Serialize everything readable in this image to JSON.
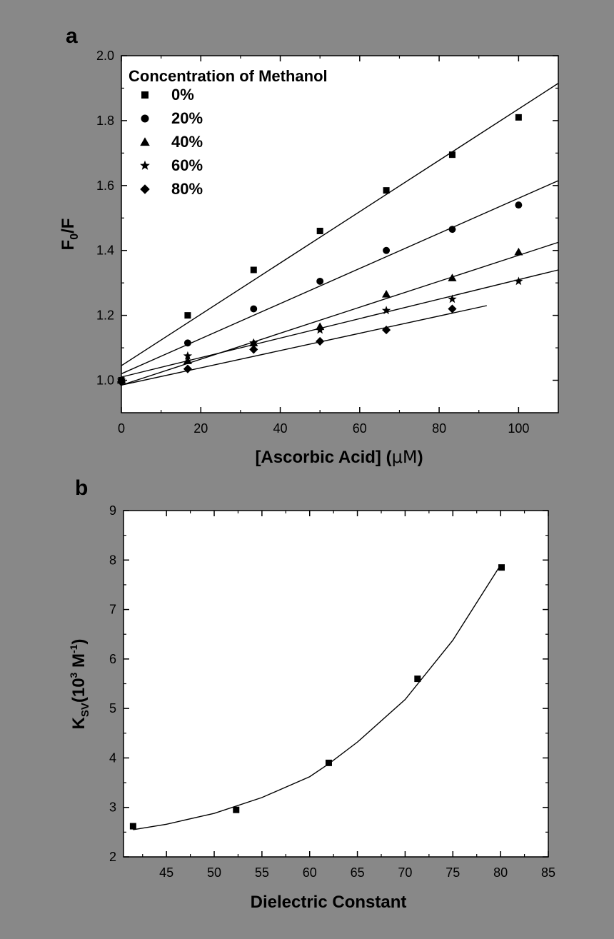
{
  "colors": {
    "background": "#888888",
    "plot_bg": "#ffffff",
    "ink": "#000000"
  },
  "chart_data": [
    {
      "panel_label": "a",
      "type": "scatter",
      "title": "",
      "xlabel_main": "[Ascorbic Acid] (",
      "xlabel_unit": "μM",
      "xlabel_close": ")",
      "ylabel_main": "F",
      "ylabel_sub": "0",
      "ylabel_tail": "/F",
      "xlim": [
        0,
        110
      ],
      "ylim": [
        0.9,
        2.0
      ],
      "x_ticks": [
        0,
        20,
        40,
        60,
        80,
        100
      ],
      "y_ticks": [
        1.0,
        1.2,
        1.4,
        1.6,
        1.8,
        2.0
      ],
      "x_tick_labels": [
        "0",
        "20",
        "40",
        "60",
        "80",
        "100"
      ],
      "y_tick_labels": [
        "1.0",
        "1.2",
        "1.4",
        "1.6",
        "1.8",
        "2.0"
      ],
      "legend_title": "Concentration of Methanol",
      "legend_position": "top-left",
      "series": [
        {
          "name": "0%",
          "marker": "square",
          "x": [
            0,
            16.7,
            33.3,
            50,
            66.7,
            83.3,
            100
          ],
          "y": [
            1.0,
            1.2,
            1.34,
            1.46,
            1.585,
            1.695,
            1.81
          ],
          "fit": {
            "x": [
              0,
              110
            ],
            "y": [
              1.045,
              1.915
            ]
          }
        },
        {
          "name": "20%",
          "marker": "circle",
          "x": [
            0,
            16.7,
            33.3,
            50,
            66.7,
            83.3,
            100
          ],
          "y": [
            1.0,
            1.115,
            1.22,
            1.305,
            1.4,
            1.465,
            1.54
          ],
          "fit": {
            "x": [
              0,
              110
            ],
            "y": [
              1.02,
              1.615
            ]
          }
        },
        {
          "name": "40%",
          "marker": "triangle",
          "x": [
            0,
            16.7,
            33.3,
            50,
            66.7,
            83.3,
            100
          ],
          "y": [
            1.0,
            1.06,
            1.115,
            1.165,
            1.265,
            1.315,
            1.395
          ],
          "fit": {
            "x": [
              0,
              110
            ],
            "y": [
              0.985,
              1.425
            ]
          }
        },
        {
          "name": "60%",
          "marker": "star",
          "x": [
            0,
            16.7,
            33.3,
            50,
            66.7,
            83.3,
            100
          ],
          "y": [
            1.0,
            1.075,
            1.115,
            1.155,
            1.215,
            1.25,
            1.305
          ],
          "fit": {
            "x": [
              0,
              110
            ],
            "y": [
              1.01,
              1.34
            ]
          }
        },
        {
          "name": "80%",
          "marker": "diamond",
          "x": [
            0,
            16.7,
            33.3,
            50,
            66.7,
            83.3
          ],
          "y": [
            0.995,
            1.035,
            1.095,
            1.12,
            1.155,
            1.22
          ],
          "fit": {
            "x": [
              0,
              92
            ],
            "y": [
              0.985,
              1.23
            ]
          }
        }
      ]
    },
    {
      "panel_label": "b",
      "type": "scatter",
      "title": "",
      "xlabel": "Dielectric Constant",
      "ylabel_main": "K",
      "ylabel_sub": "SV",
      "ylabel_mid": "(10",
      "ylabel_sup1": "3",
      "ylabel_unit": " M",
      "ylabel_sup2": "-1",
      "ylabel_close": ")",
      "xlim": [
        40.5,
        85
      ],
      "ylim": [
        2,
        9
      ],
      "x_ticks": [
        45,
        50,
        55,
        60,
        65,
        70,
        75,
        80,
        85
      ],
      "y_ticks": [
        2,
        3,
        4,
        5,
        6,
        7,
        8,
        9
      ],
      "x_tick_labels": [
        "45",
        "50",
        "55",
        "60",
        "65",
        "70",
        "75",
        "80",
        "85"
      ],
      "y_tick_labels": [
        "2",
        "3",
        "4",
        "5",
        "6",
        "7",
        "8",
        "9"
      ],
      "series": [
        {
          "name": "Ksv",
          "marker": "square",
          "x": [
            41.5,
            52.3,
            62.0,
            71.3,
            80.1
          ],
          "y": [
            2.62,
            2.95,
            3.9,
            5.6,
            7.85
          ],
          "fit": {
            "x": [
              41.5,
              45,
              50,
              55,
              60,
              62,
              65,
              70,
              75,
              80
            ],
            "y": [
              2.55,
              2.66,
              2.88,
              3.2,
              3.62,
              3.88,
              4.32,
              5.18,
              6.38,
              7.9
            ]
          }
        }
      ]
    }
  ]
}
